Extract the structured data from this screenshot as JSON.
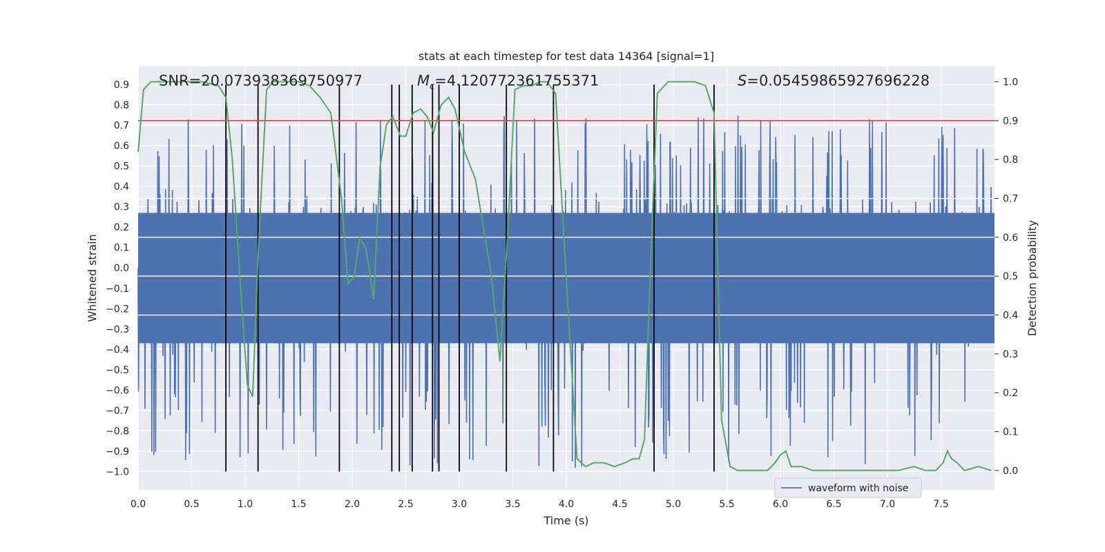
{
  "chart_data": {
    "type": "line",
    "title": "stats at each timestep for test data 14364 [signal=1]",
    "xlabel": "Time (s)",
    "ylabel_left": "Whitened strain",
    "ylabel_right": "Detection probability",
    "xlim": [
      0,
      8
    ],
    "ylim_left": [
      -1.09,
      0.99
    ],
    "ylim_right": [
      -0.05,
      1.04
    ],
    "x_ticks": [
      "0.0",
      "0.5",
      "1.0",
      "1.5",
      "2.0",
      "2.5",
      "3.0",
      "3.5",
      "4.0",
      "4.5",
      "5.0",
      "5.5",
      "6.0",
      "6.5",
      "7.0",
      "7.5"
    ],
    "y_ticks_left": [
      "−1.0",
      "−0.9",
      "−0.8",
      "−0.7",
      "−0.6",
      "−0.5",
      "−0.4",
      "−0.3",
      "−0.2",
      "−0.1",
      "0.0",
      "0.1",
      "0.2",
      "0.3",
      "0.4",
      "0.5",
      "0.6",
      "0.7",
      "0.8",
      "0.9"
    ],
    "y_ticks_right": [
      "0.0",
      "0.1",
      "0.2",
      "0.3",
      "0.4",
      "0.5",
      "0.6",
      "0.7",
      "0.8",
      "0.9",
      "1.0"
    ],
    "annotations": {
      "snr": "SNR=20.073938369750977",
      "mc_symbol": "M",
      "mc_sub": "c",
      "mc_value": "=4.120772361755371",
      "s_symbol": "S",
      "s_value": "=0.05459865927696228"
    },
    "threshold": 0.9,
    "grid": true,
    "legend_position": "lower-right",
    "series": [
      {
        "name": "waveform with noise",
        "color": "#4c72b0",
        "axis": "left",
        "description_values": "noise band mostly within -0.45..0.5 with spikes up to 0.75 and down to -1.0"
      },
      {
        "color": "#55a868",
        "axis": "right",
        "x": [
          0.0,
          0.05,
          0.12,
          0.2,
          0.4,
          0.6,
          0.75,
          0.82,
          0.88,
          0.95,
          1.02,
          1.07,
          1.12,
          1.2,
          1.26,
          1.3,
          1.4,
          1.5,
          1.6,
          1.7,
          1.8,
          1.9,
          1.96,
          2.02,
          2.07,
          2.13,
          2.2,
          2.26,
          2.32,
          2.38,
          2.45,
          2.5,
          2.57,
          2.64,
          2.7,
          2.76,
          2.83,
          2.9,
          2.96,
          3.05,
          3.15,
          3.3,
          3.38,
          3.45,
          3.52,
          3.6,
          3.68,
          3.75,
          3.82,
          3.9,
          4.02,
          4.1,
          4.18,
          4.26,
          4.35,
          4.45,
          4.55,
          4.62,
          4.68,
          4.73,
          4.78,
          4.85,
          4.95,
          5.05,
          5.2,
          5.3,
          5.38,
          5.45,
          5.53,
          5.6,
          5.7,
          5.8,
          5.88,
          5.95,
          6.0,
          6.05,
          6.1,
          6.2,
          6.3,
          6.45,
          6.6,
          6.8,
          6.95,
          7.1,
          7.25,
          7.35,
          7.45,
          7.52,
          7.56,
          7.6,
          7.65,
          7.72,
          7.85,
          7.97
        ],
        "y": [
          0.82,
          0.98,
          1.0,
          1.0,
          1.0,
          1.0,
          0.99,
          0.96,
          0.8,
          0.5,
          0.22,
          0.19,
          0.55,
          0.98,
          1.0,
          1.0,
          1.0,
          1.0,
          0.99,
          0.96,
          0.92,
          0.7,
          0.48,
          0.5,
          0.6,
          0.57,
          0.44,
          0.78,
          0.89,
          0.91,
          0.86,
          0.86,
          0.92,
          0.93,
          0.91,
          0.87,
          0.94,
          0.96,
          0.93,
          0.82,
          0.75,
          0.5,
          0.28,
          0.6,
          0.98,
          0.99,
          0.99,
          1.0,
          1.0,
          0.97,
          0.4,
          0.03,
          0.01,
          0.02,
          0.02,
          0.01,
          0.02,
          0.03,
          0.03,
          0.08,
          0.48,
          0.97,
          1.0,
          1.0,
          1.0,
          0.99,
          0.92,
          0.13,
          0.01,
          0.0,
          0.0,
          0.0,
          0.0,
          0.02,
          0.04,
          0.05,
          0.01,
          0.01,
          0.0,
          0.0,
          0.0,
          0.0,
          0.0,
          0.0,
          0.01,
          0.0,
          0.0,
          0.02,
          0.05,
          0.03,
          0.02,
          0.0,
          0.01,
          0.0
        ]
      },
      {
        "color": "#c44e52",
        "axis": "right",
        "x": [
          0.0,
          8.0
        ],
        "y": [
          0.9,
          0.9
        ]
      }
    ],
    "vertical_lines_x": [
      0.82,
      1.12,
      1.88,
      2.37,
      2.44,
      2.56,
      2.75,
      2.81,
      3.0,
      3.44,
      3.88,
      4.82,
      5.38
    ],
    "legend": [
      {
        "label": "waveform with noise",
        "color": "#4c72b0"
      }
    ]
  }
}
